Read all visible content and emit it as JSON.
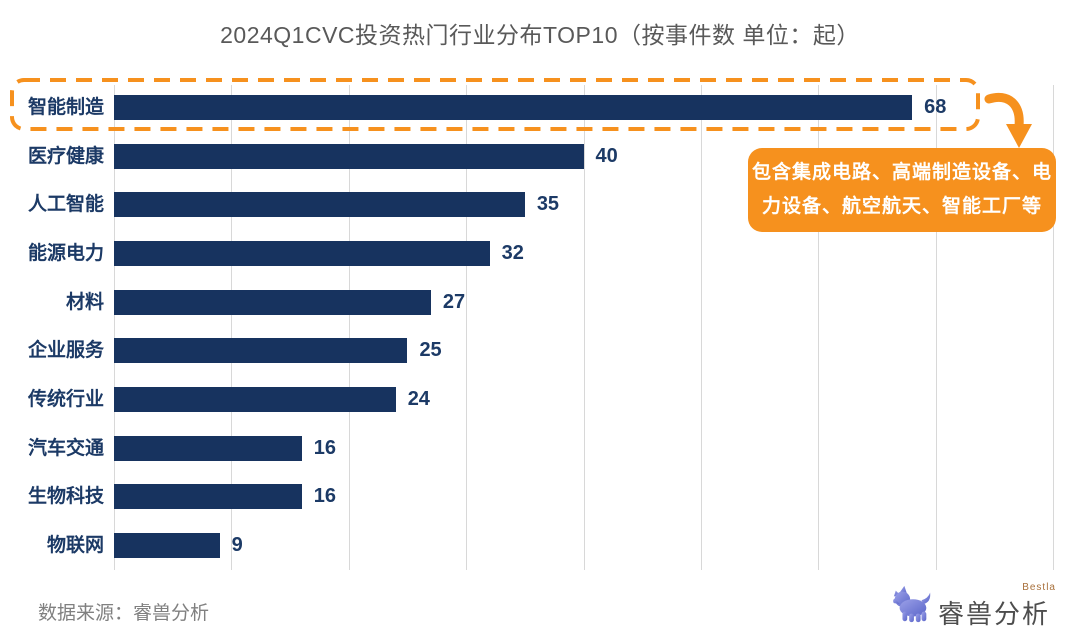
{
  "title": "2024Q1CVC投资热门行业分布TOP10（按事件数 单位：起）",
  "chart_data": {
    "type": "bar",
    "orientation": "horizontal",
    "categories": [
      "智能制造",
      "医疗健康",
      "人工智能",
      "能源电力",
      "材料",
      "企业服务",
      "传统行业",
      "汽车交通",
      "生物科技",
      "物联网"
    ],
    "values": [
      68,
      40,
      35,
      32,
      27,
      25,
      24,
      16,
      16,
      9
    ],
    "xlim": [
      0,
      80
    ],
    "gridline_interval": 10,
    "grid": true,
    "value_labels_shown": true,
    "bar_color": "#17335f",
    "label_color": "#1c3a66",
    "gridline_color": "#d8d8d8",
    "highlight": {
      "category": "智能制造",
      "style": "dashed-outline",
      "color": "#f6911e"
    },
    "annotation": {
      "target": "智能制造",
      "line1": "包含集成电路、高端制造设备、电",
      "line2": "力设备、航空航天、智能工厂等",
      "background_color": "#f6911e",
      "text_color": "#ffffff"
    }
  },
  "footer": {
    "source": "数据来源：睿兽分析"
  },
  "brand": {
    "name": "睿兽分析",
    "en": "Bestla",
    "icon": "bestla-beast-icon",
    "icon_color": "#6b74ce"
  }
}
